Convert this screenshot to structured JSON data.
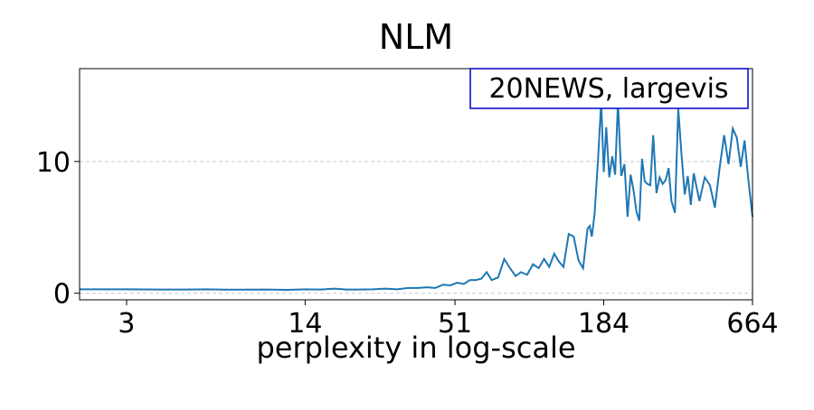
{
  "chart_data": {
    "type": "line",
    "title": "NLM",
    "xlabel": "perplexity in log-scale",
    "annotation": "20NEWS, largevis",
    "xscale": "log",
    "grid": true,
    "color": "#1f77b4",
    "xlim": [
      2,
      664
    ],
    "xticks": [
      3,
      14,
      51,
      184,
      664
    ],
    "ylim": [
      -0.5,
      17.05
    ],
    "yticks": [
      0,
      10
    ],
    "x": [
      2,
      3,
      4,
      5,
      6,
      7,
      8,
      10,
      12,
      14,
      16,
      18,
      20,
      22,
      25,
      28,
      31,
      34,
      37,
      40,
      43,
      46,
      49,
      52,
      55,
      58,
      61,
      64,
      67,
      70,
      74,
      78,
      82,
      86,
      90,
      95,
      100,
      105,
      110,
      115,
      120,
      125,
      130,
      136,
      142,
      148,
      154,
      160,
      163,
      166,
      170,
      175,
      180,
      184,
      188,
      193,
      198,
      203,
      208,
      214,
      220,
      226,
      232,
      238,
      244,
      250,
      256,
      262,
      268,
      275,
      282,
      290,
      298,
      306,
      314,
      322,
      330,
      340,
      350,
      360,
      370,
      380,
      390,
      400,
      420,
      440,
      460,
      480,
      500,
      520,
      540,
      560,
      580,
      600,
      620,
      640,
      664
    ],
    "values": [
      0.3,
      0.3,
      0.28,
      0.28,
      0.3,
      0.27,
      0.27,
      0.28,
      0.25,
      0.3,
      0.28,
      0.35,
      0.28,
      0.28,
      0.3,
      0.35,
      0.3,
      0.4,
      0.4,
      0.45,
      0.4,
      0.65,
      0.6,
      0.8,
      0.7,
      1.0,
      1.0,
      1.1,
      1.6,
      1.0,
      1.2,
      2.6,
      1.9,
      1.3,
      1.6,
      1.4,
      2.2,
      1.9,
      2.6,
      2.0,
      3.0,
      2.4,
      2.0,
      4.5,
      4.3,
      2.5,
      1.9,
      4.9,
      5.1,
      4.3,
      6.0,
      10,
      14.5,
      9.2,
      12.6,
      8.8,
      10.4,
      9,
      14.5,
      8.9,
      9.8,
      5.8,
      9.0,
      7.8,
      6.2,
      5.5,
      10.2,
      8.5,
      8.3,
      8.2,
      12,
      7.6,
      8.8,
      8.3,
      8.6,
      9.5,
      7.0,
      6.1,
      14,
      10.5,
      7.5,
      8.9,
      6.7,
      9.1,
      7.0,
      8.8,
      8.2,
      6.5,
      9.5,
      12,
      9.8,
      12.5,
      11.8,
      9.6,
      11.6,
      8.7,
      5.8
    ]
  }
}
